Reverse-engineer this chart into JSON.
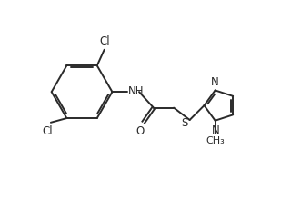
{
  "background_color": "#ffffff",
  "line_color": "#2a2a2a",
  "text_color": "#2a2a2a",
  "line_width": 1.4,
  "font_size": 8.5,
  "figsize": [
    3.2,
    2.29
  ],
  "dpi": 100,
  "xlim": [
    0,
    10
  ],
  "ylim": [
    0,
    7.16
  ]
}
